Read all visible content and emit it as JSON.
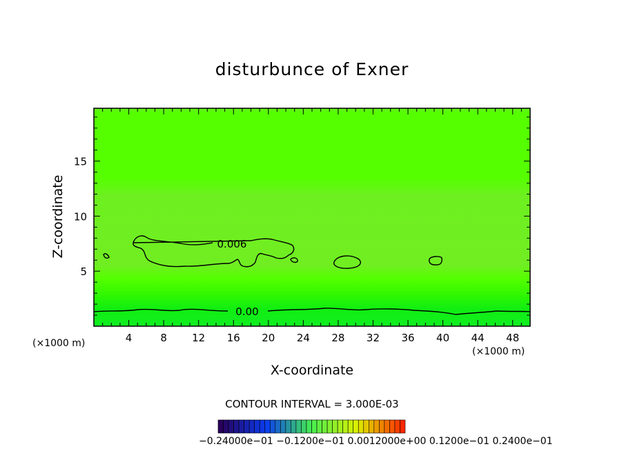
{
  "chart_data": {
    "type": "heatmap",
    "title": "disturbunce of Exner",
    "xlabel": "X-coordinate",
    "ylabel": "Z-coordinate",
    "x_unit": "(×1000 m)",
    "x_ticks": [
      4,
      8,
      12,
      16,
      20,
      24,
      28,
      32,
      36,
      40,
      44,
      48
    ],
    "y_ticks": [
      5,
      10,
      15
    ],
    "xlim": [
      0,
      50
    ],
    "ylim": [
      0,
      19.8
    ],
    "contour_labels": [
      "0.006",
      "0.00"
    ],
    "contour_interval_text": "CONTOUR INTERVAL = 3.000E-03",
    "colorbar_text": "−0.24000e−01 −0.1200e−01 0.0012000e+00 0.1200e−01 0.2400e−01",
    "grid": false
  },
  "colors": {
    "background": "#ffffff",
    "field_main": "#55ff00",
    "field_light": "#77ee22",
    "field_bottom": "#11ee11",
    "contour_line": "#000000"
  }
}
